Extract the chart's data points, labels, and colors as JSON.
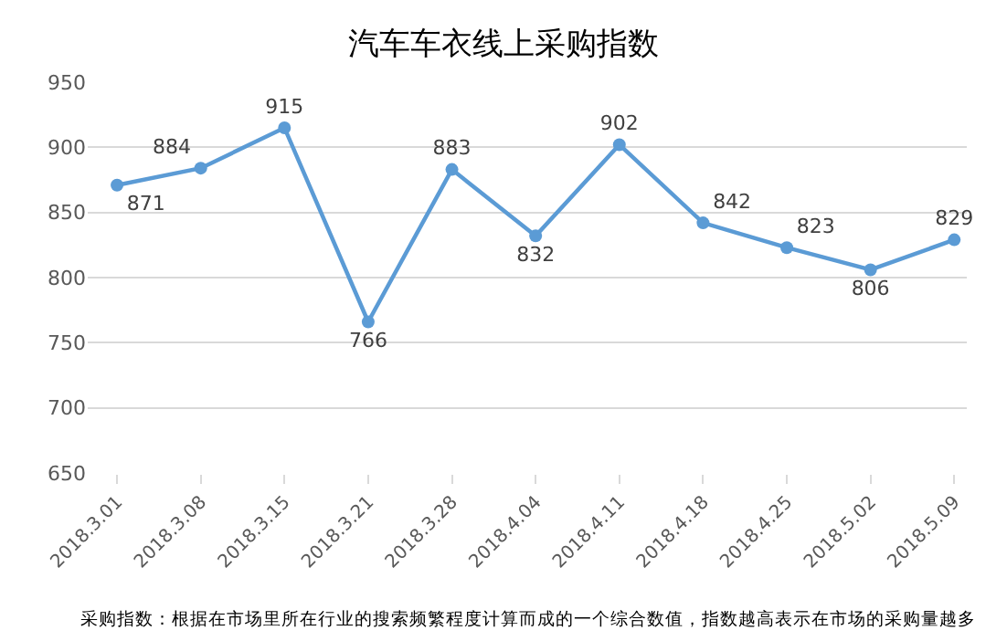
{
  "chart_data": {
    "type": "line",
    "title": "汽车车衣线上采购指数",
    "categories": [
      "2018.3.01",
      "2018.3.08",
      "2018.3.15",
      "2018.3.21",
      "2018.3.28",
      "2018.4.04",
      "2018.4.11",
      "2018.4.18",
      "2018.4.25",
      "2018.5.02",
      "2018.5.09"
    ],
    "series": [
      {
        "color": "#5b9bd5",
        "values": [
          871,
          884,
          915,
          766,
          883,
          832,
          902,
          842,
          823,
          806,
          829
        ]
      }
    ],
    "ylim": [
      650,
      950
    ],
    "yticks": [
      650,
      700,
      750,
      800,
      850,
      900,
      950
    ],
    "grid": "y",
    "marker": "circle",
    "line_style": "solid",
    "data_labels": true,
    "annotations": [
      "采购指数：根据在市场里所在行业的搜索频繁程度计算而成的一个综合数值，指数越高表示在市场的采购量越多"
    ]
  }
}
